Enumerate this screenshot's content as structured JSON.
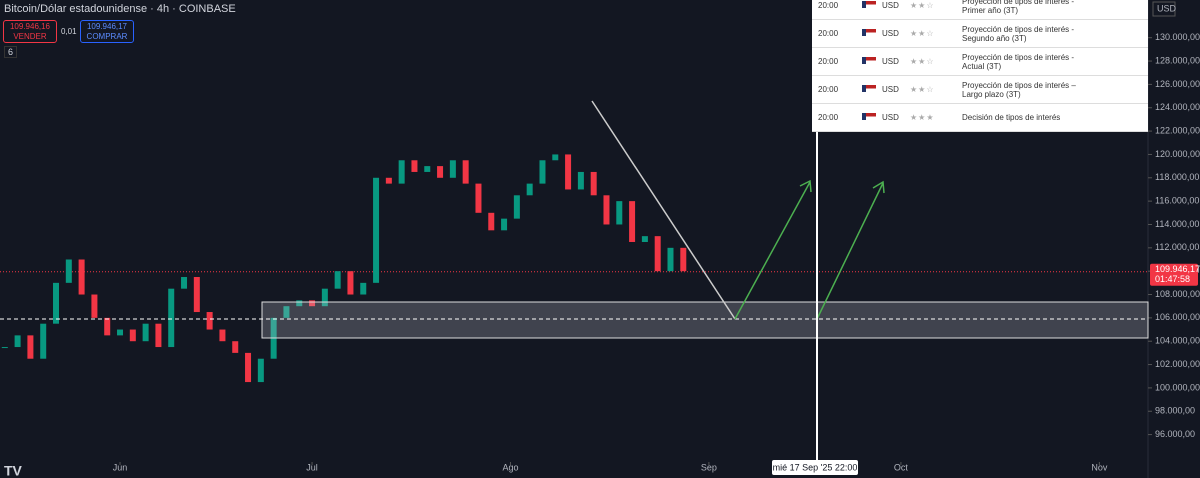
{
  "header": {
    "symbol": "Bitcoin/Dólar estadounidense · 4h · COINBASE",
    "sell_price": "109.946,16",
    "sell_label": "VENDER",
    "spread": "0,01",
    "buy_price": "109.946,17",
    "buy_label": "COMPRAR",
    "indicator_count": "6"
  },
  "chart_data": {
    "type": "candlestick",
    "currency": "USD",
    "x": [
      -18,
      -16,
      -14,
      -12,
      -10,
      -8,
      -6,
      -4,
      -2,
      0,
      2,
      4,
      6,
      8,
      10,
      12,
      14,
      16,
      18,
      20,
      22,
      24,
      26,
      28,
      30,
      32,
      34,
      36,
      38,
      40,
      42,
      44,
      46,
      48,
      50,
      52,
      54,
      56,
      58,
      60,
      62,
      64,
      66,
      68,
      70,
      72,
      74,
      76,
      78,
      80,
      82,
      84,
      86,
      88
    ],
    "series": [
      {
        "name": "BTCUSD",
        "values": [
          103500,
          104500,
          102500,
          105500,
          109000,
          111000,
          108000,
          106000,
          104500,
          105000,
          104000,
          105500,
          103500,
          108500,
          109500,
          106500,
          105000,
          104000,
          103000,
          100500,
          102500,
          106000,
          107000,
          107500,
          107000,
          108500,
          110000,
          108000,
          109000,
          118000,
          117500,
          119500,
          118500,
          119000,
          118000,
          119500,
          117500,
          115000,
          113500,
          114500,
          116500,
          117500,
          119500,
          120000,
          117000,
          118500,
          116500,
          114000,
          116000,
          112500,
          113000,
          110000,
          112000,
          110000
        ]
      }
    ],
    "up_color": "#089981",
    "down_color": "#f23645",
    "xlim": [
      -18.75,
      160.6
    ],
    "xticks": [
      {
        "value": 0,
        "label": "Jun"
      },
      {
        "value": 30,
        "label": "Jul"
      },
      {
        "value": 61,
        "label": "Ago"
      },
      {
        "value": 92,
        "label": "Sep"
      },
      {
        "value": 122,
        "label": "Oct"
      },
      {
        "value": 153,
        "label": "Nov"
      }
    ],
    "ylim": [
      95880,
      133230
    ],
    "yticks": [
      {
        "value": 96000,
        "label": "96.000,00"
      },
      {
        "value": 98000,
        "label": "98.000,00"
      },
      {
        "value": 100000,
        "label": "100.000,00"
      },
      {
        "value": 102000,
        "label": "102.000,00"
      },
      {
        "value": 104000,
        "label": "104.000,00"
      },
      {
        "value": 106000,
        "label": "106.000,00"
      },
      {
        "value": 108000,
        "label": "108.000,00"
      },
      {
        "value": 110000,
        "label": "110.000,00"
      },
      {
        "value": 112000,
        "label": "112.000,00"
      },
      {
        "value": 114000,
        "label": "114.000,00"
      },
      {
        "value": 116000,
        "label": "116.000,00"
      },
      {
        "value": 118000,
        "label": "118.000,00"
      },
      {
        "value": 120000,
        "label": "120.000,00"
      },
      {
        "value": 122000,
        "label": "122.000,00"
      },
      {
        "value": 124000,
        "label": "124.000,00"
      },
      {
        "value": 126000,
        "label": "126.000,00"
      },
      {
        "value": 128000,
        "label": "128.000,00"
      },
      {
        "value": 130000,
        "label": "130.000,00"
      }
    ],
    "last_price": {
      "value": 109946.17,
      "label": "109.946,17"
    },
    "countdown": "01:47:58",
    "crosshair_time": "mié 17 Sep '25   22:00"
  },
  "events": {
    "rows": [
      [
        "20:00",
        "USD",
        "Proyección de tipos de interés - Primer año (3T)"
      ],
      [
        "20:00",
        "USD",
        "Proyección de tipos de interés - Segundo año (3T)"
      ],
      [
        "20:00",
        "USD",
        "Proyección de tipos de interés - Actual (3T)"
      ],
      [
        "20:00",
        "USD",
        "Proyección de tipos de interés – Largo plazo (3T)"
      ],
      [
        "20:00",
        "USD",
        "Decisión de tipos de interés"
      ]
    ]
  }
}
